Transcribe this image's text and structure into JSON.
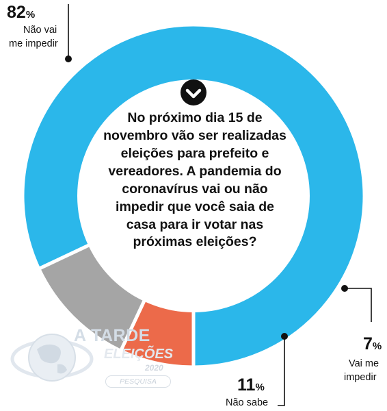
{
  "chart_data": {
    "type": "pie",
    "question": "No próximo dia 15 de novembro vão ser realizadas eleições para prefeito e vereadores. A pandemia do coronavírus vai ou não impedir que você saia de casa para ir votar nas próximas eleições?",
    "slices": [
      {
        "key": "nao_vai",
        "value": 82,
        "value_label": "82",
        "unit": "%",
        "label_lines": [
          "Não vai",
          "me impedir"
        ],
        "color": "#2bb7ea"
      },
      {
        "key": "vai",
        "value": 7,
        "value_label": "7",
        "unit": "%",
        "label_lines": [
          "Vai me",
          "impedir"
        ],
        "color": "#ec6a4a"
      },
      {
        "key": "nao_sabe",
        "value": 11,
        "value_label": "11",
        "unit": "%",
        "label_lines": [
          "Não sabe"
        ],
        "color": "#a5a5a5"
      }
    ]
  },
  "icons": {
    "center": "check-chevron-icon",
    "logo": "globe-icon"
  },
  "logo": {
    "name": "A TARDE",
    "subtitle": "ELEIÇÕES",
    "year": "2020",
    "tag": "PESQUISA"
  }
}
